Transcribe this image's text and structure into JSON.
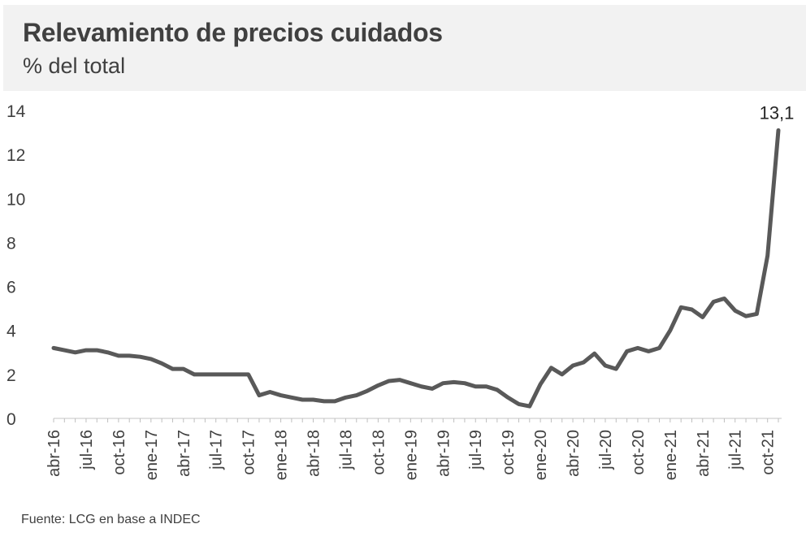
{
  "header": {
    "title": "Relevamiento de precios cuidados",
    "subtitle": "% del total"
  },
  "footer": {
    "source": "Fuente:  LCG en  base a  INDEC"
  },
  "colors": {
    "line": "#595959",
    "text": "#404040",
    "header_bg": "#f2f2f2"
  },
  "chart_data": {
    "type": "line",
    "title": "Relevamiento de precios cuidados",
    "subtitle": "% del total",
    "ylim": [
      0,
      14
    ],
    "yticks": [
      0,
      2,
      4,
      6,
      8,
      10,
      12,
      14
    ],
    "grid": false,
    "legend": "none",
    "x_tick_labels": [
      "abr-16",
      "jul-16",
      "oct-16",
      "ene-17",
      "abr-17",
      "jul-17",
      "oct-17",
      "ene-18",
      "abr-18",
      "jul-18",
      "oct-18",
      "ene-19",
      "abr-19",
      "jul-19",
      "oct-19",
      "ene-20",
      "abr-20",
      "jul-20",
      "oct-20",
      "ene-21",
      "abr-21",
      "jul-21",
      "oct-21"
    ],
    "annotation": {
      "label": "13,1",
      "value": 13.1
    },
    "series": [
      {
        "x": [
          "abr-16",
          "may-16",
          "jun-16",
          "jul-16",
          "ago-16",
          "sep-16",
          "oct-16",
          "nov-16",
          "dic-16",
          "ene-17",
          "feb-17",
          "mar-17",
          "abr-17",
          "may-17",
          "jun-17",
          "jul-17",
          "ago-17",
          "sep-17",
          "oct-17",
          "nov-17",
          "dic-17",
          "ene-18",
          "feb-18",
          "mar-18",
          "abr-18",
          "may-18",
          "jun-18",
          "jul-18",
          "ago-18",
          "sep-18",
          "oct-18",
          "nov-18",
          "dic-18",
          "ene-19",
          "feb-19",
          "mar-19",
          "abr-19",
          "may-19",
          "jun-19",
          "jul-19",
          "ago-19",
          "sep-19",
          "oct-19",
          "nov-19",
          "dic-19",
          "ene-20",
          "feb-20",
          "mar-20",
          "abr-20",
          "may-20",
          "jun-20",
          "jul-20",
          "ago-20",
          "sep-20",
          "oct-20",
          "nov-20",
          "dic-20",
          "ene-21",
          "feb-21",
          "mar-21",
          "abr-21",
          "may-21",
          "jun-21",
          "jul-21",
          "ago-21",
          "sep-21",
          "oct-21",
          "nov-21"
        ],
        "values": [
          3.2,
          3.1,
          3.0,
          3.1,
          3.1,
          3.0,
          2.85,
          2.85,
          2.8,
          2.7,
          2.5,
          2.25,
          2.25,
          2.0,
          2.0,
          2.0,
          2.0,
          2.0,
          2.0,
          1.05,
          1.2,
          1.05,
          0.95,
          0.85,
          0.85,
          0.78,
          0.78,
          0.95,
          1.05,
          1.25,
          1.5,
          1.7,
          1.75,
          1.6,
          1.45,
          1.35,
          1.6,
          1.65,
          1.6,
          1.45,
          1.45,
          1.3,
          0.95,
          0.65,
          0.55,
          1.55,
          2.3,
          2.0,
          2.4,
          2.55,
          2.95,
          2.4,
          2.25,
          3.05,
          3.2,
          3.05,
          3.2,
          4.0,
          5.05,
          4.95,
          4.6,
          5.3,
          5.45,
          4.9,
          4.65,
          4.75,
          7.4,
          13.1
        ]
      }
    ]
  }
}
